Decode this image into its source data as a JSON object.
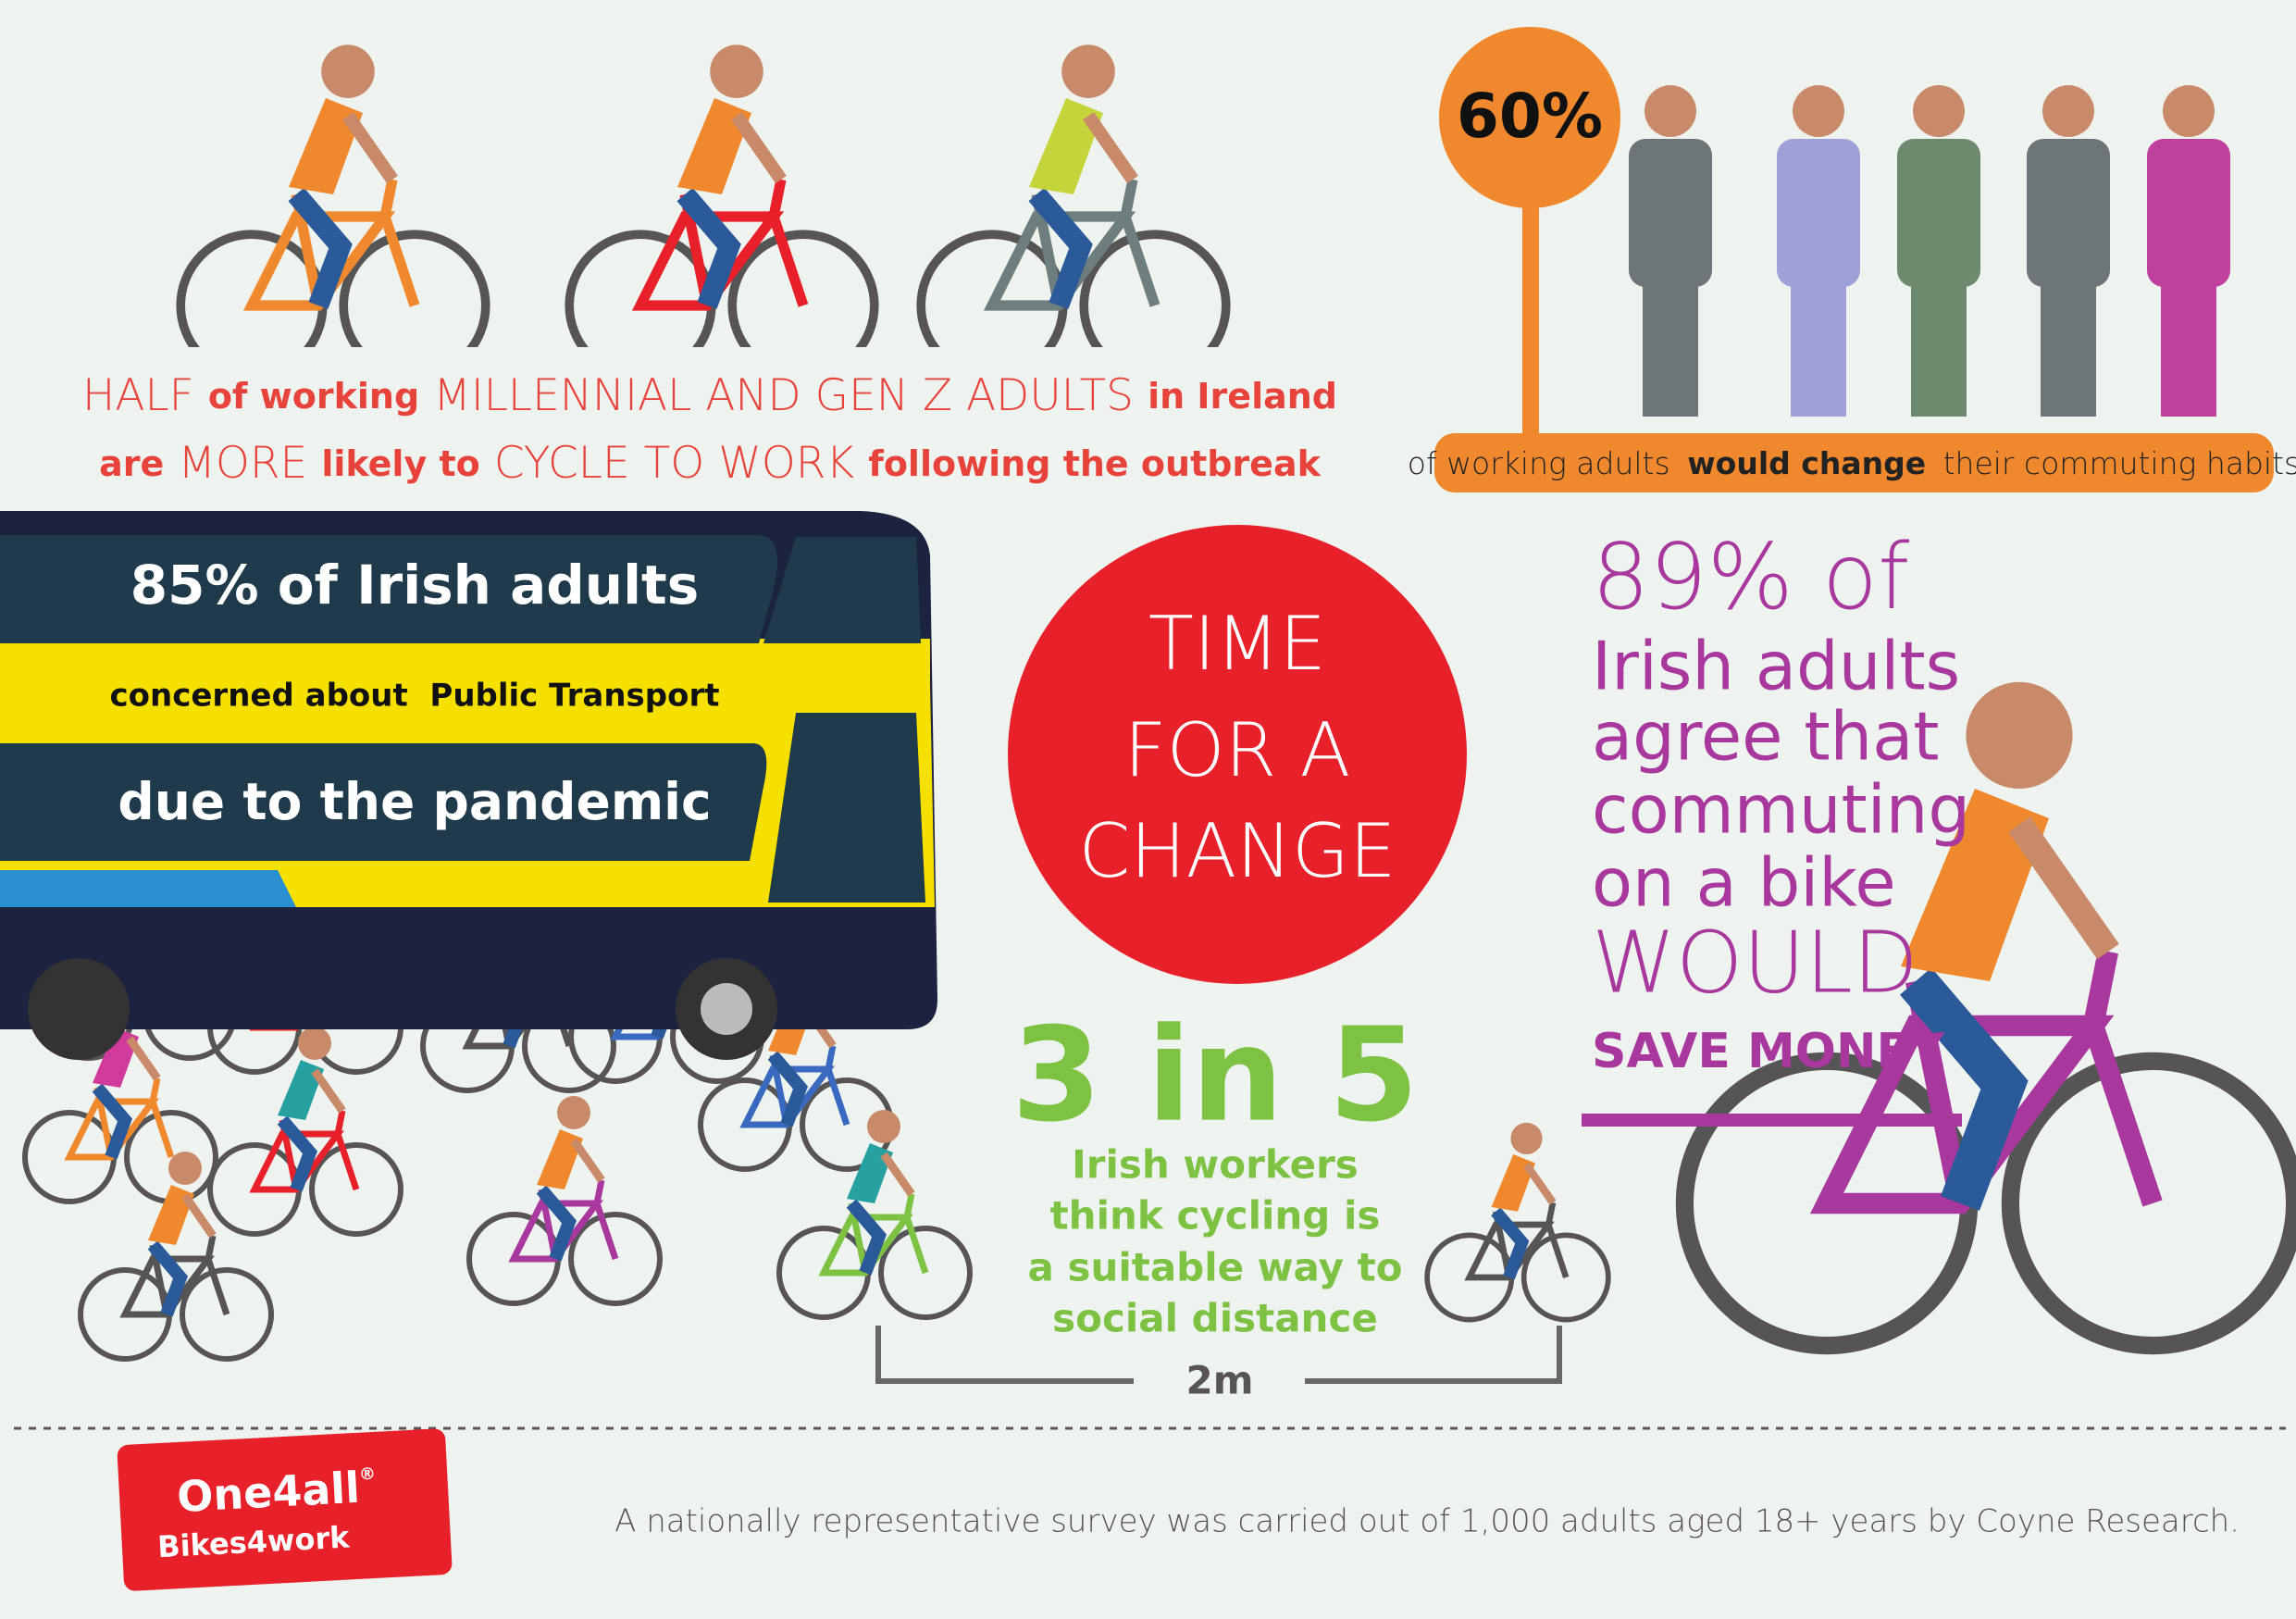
{
  "headline": {
    "line1": [
      "HALF",
      "of working",
      "MILLENNIAL AND GEN Z ADULTS",
      "in Ireland"
    ],
    "line2": [
      "are",
      "MORE",
      "likely to",
      "CYCLE TO WORK",
      "following the outbreak"
    ]
  },
  "commute_stat": {
    "figure": "60%",
    "caption": [
      "of working adults",
      "would change",
      "their commuting habits"
    ]
  },
  "bus": {
    "line1": "85% of Irish adults",
    "line2": "concerned about  Public Transport",
    "line3": "due to the pandemic"
  },
  "banner": {
    "lines": [
      "TIME",
      "FOR A",
      "CHANGE"
    ]
  },
  "money_stat": {
    "lines": [
      "89% of",
      "Irish adults",
      "agree that",
      "commuting",
      "on a bike",
      "WOULD",
      "SAVE MONEY"
    ]
  },
  "distance_stat": {
    "figure": "3 in 5",
    "lines": [
      "Irish workers",
      "think cycling is",
      "a suitable way to",
      "social distance"
    ],
    "distance": "2m"
  },
  "logo": {
    "brand": "One4all",
    "mark": "®",
    "product": "Bikes4work"
  },
  "footer": {
    "source": "A nationally representative survey was carried out of 1,000 adults aged 18+ years by Coyne Research."
  }
}
